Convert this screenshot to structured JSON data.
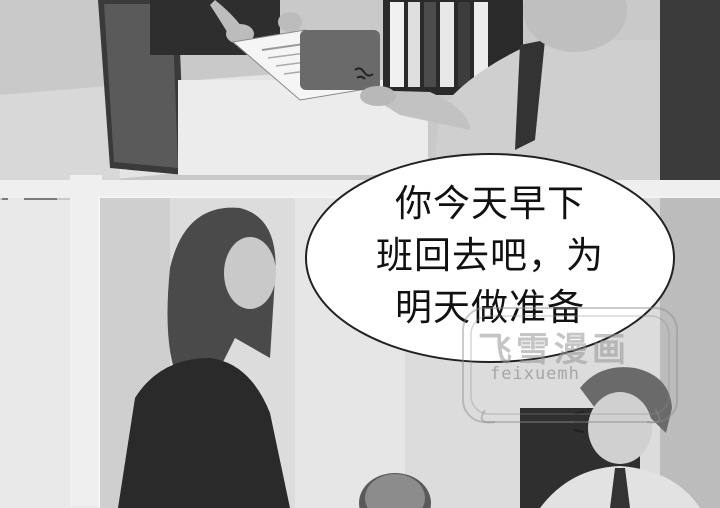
{
  "speech_bubble": {
    "lines": [
      "你今天早下",
      "班回去吧，为",
      "明天做准备"
    ]
  },
  "watermark": {
    "chinese": "飞雪漫画",
    "latin": "feixuemh"
  }
}
